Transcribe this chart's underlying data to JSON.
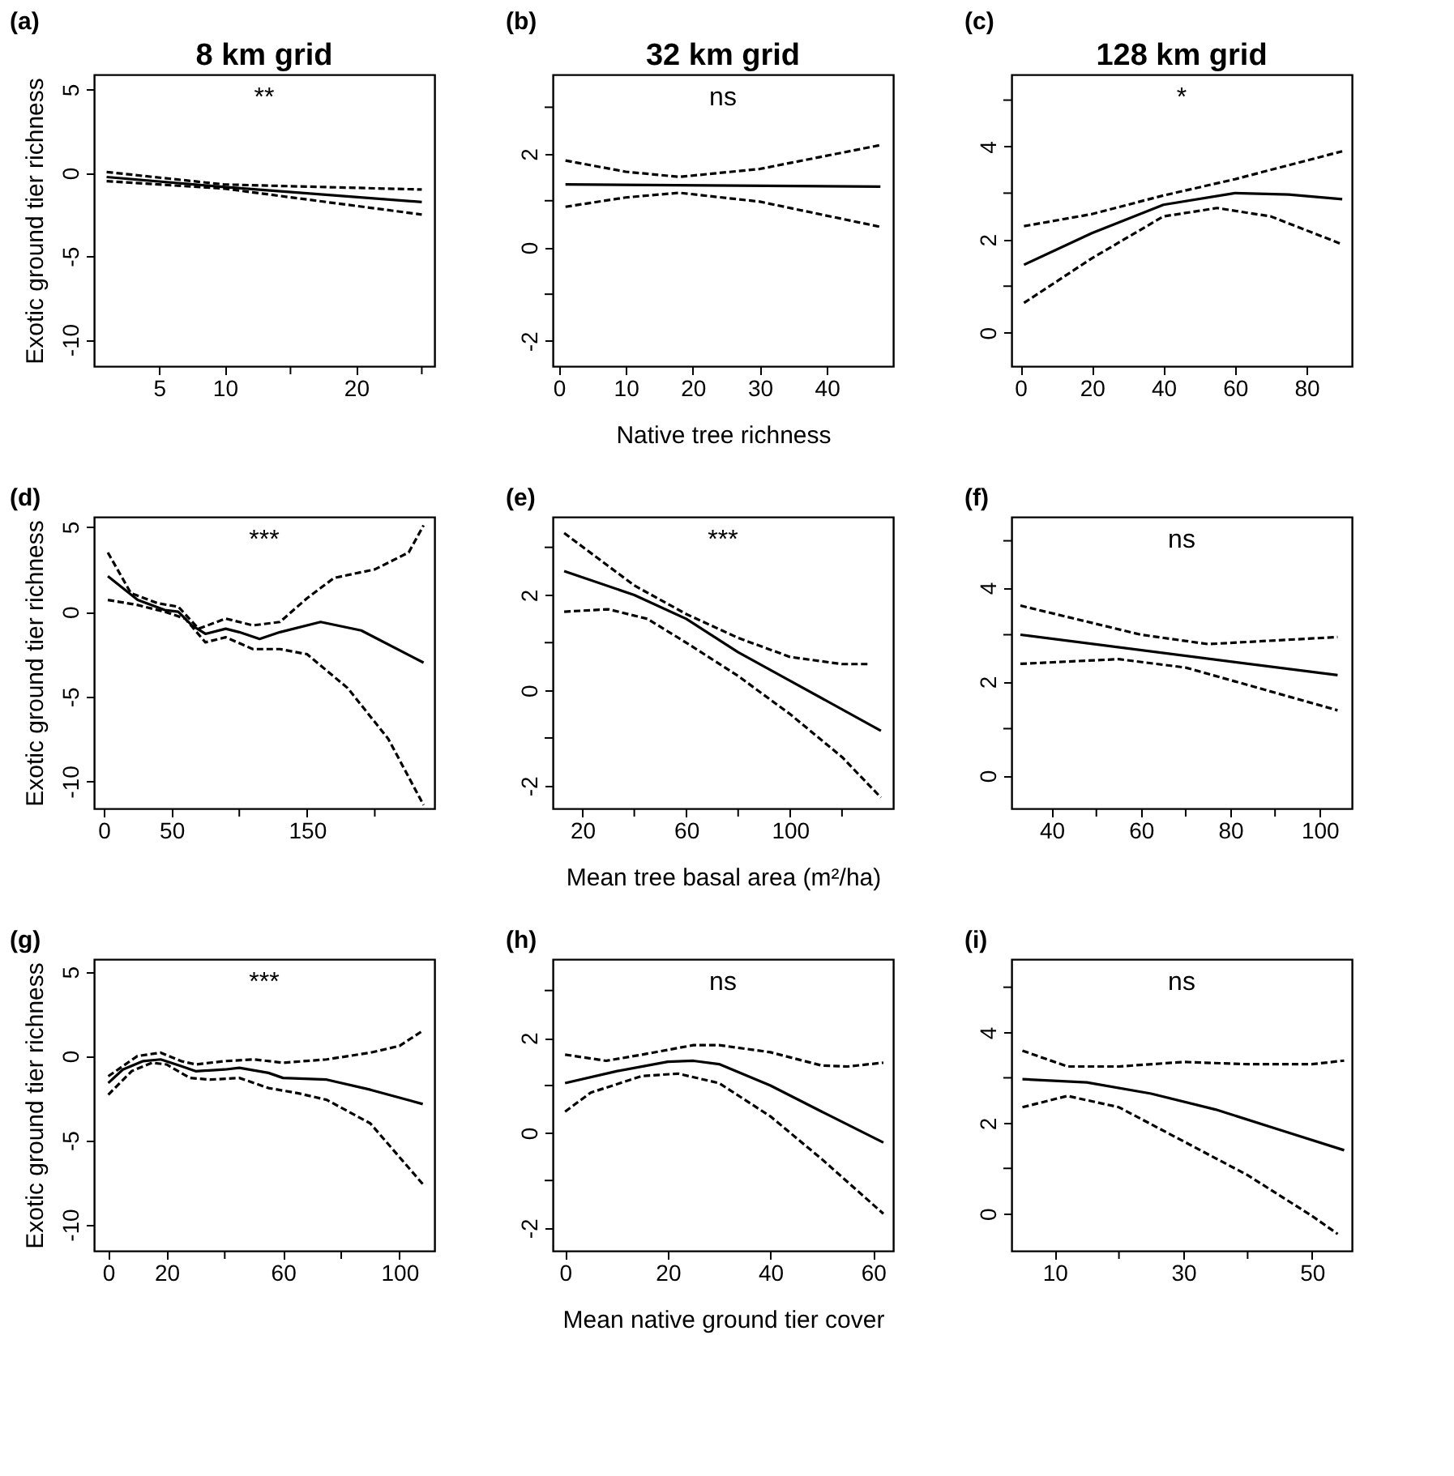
{
  "chart_data": [
    {
      "type": "line",
      "title": "(a)",
      "subtitle": "8 km grid",
      "annotations": [
        "**"
      ],
      "ylabel": "Exotic ground tier richness",
      "xlim": [
        0.04,
        25.96
      ],
      "xticks": [
        5,
        10,
        {
          "value": 15,
          "label": null
        },
        20,
        {
          "value": 25,
          "label": null
        }
      ],
      "ylim": [
        -11.6,
        5.9
      ],
      "yticks": [
        -10,
        -5,
        0,
        5
      ],
      "grid": false,
      "series": [
        {
          "color": "#000000",
          "line_style": "solid",
          "x": [
            1,
            10,
            25
          ],
          "values": [
            -0.25,
            -0.85,
            -1.75
          ]
        },
        {
          "color": "#000000",
          "line_style": "dashed",
          "x": [
            1,
            10,
            25
          ],
          "values": [
            0.05,
            -0.7,
            -1.0
          ]
        },
        {
          "color": "#000000",
          "line_style": "dashed",
          "x": [
            1,
            10,
            25
          ],
          "values": [
            -0.5,
            -0.95,
            -2.5
          ]
        }
      ]
    },
    {
      "type": "line",
      "title": "(b)",
      "subtitle": "32 km grid",
      "annotations": [
        "ns"
      ],
      "xlabel": "Native tree richness",
      "xlim": [
        -0.9,
        49.9
      ],
      "xticks": [
        0,
        10,
        20,
        30,
        40
      ],
      "ylim": [
        -2.54,
        3.7
      ],
      "yticks": [
        -2,
        {
          "value": -1,
          "label": null
        },
        0,
        {
          "value": 1,
          "label": null
        },
        2,
        {
          "value": 3,
          "label": null
        }
      ],
      "grid": false,
      "series": [
        {
          "color": "#000000",
          "line_style": "solid",
          "x": [
            1,
            48
          ],
          "values": [
            1.35,
            1.3
          ]
        },
        {
          "color": "#000000",
          "line_style": "dashed",
          "x": [
            1,
            10,
            18,
            30,
            48
          ],
          "values": [
            1.86,
            1.62,
            1.51,
            1.68,
            2.19
          ]
        },
        {
          "color": "#000000",
          "line_style": "dashed",
          "x": [
            1,
            10,
            18,
            30,
            48
          ],
          "values": [
            0.87,
            1.07,
            1.17,
            0.98,
            0.44
          ]
        }
      ]
    },
    {
      "type": "line",
      "title": "(c)",
      "subtitle": "128 km grid",
      "annotations": [
        "*"
      ],
      "xlim": [
        -2.5,
        92.7
      ],
      "xticks": [
        0,
        20,
        40,
        60,
        80
      ],
      "ylim": [
        -0.72,
        5.55
      ],
      "yticks": [
        0,
        {
          "value": 1,
          "label": null
        },
        2,
        {
          "value": 3,
          "label": null
        },
        4,
        {
          "value": 5,
          "label": null
        }
      ],
      "grid": false,
      "series": [
        {
          "color": "#000000",
          "line_style": "solid",
          "x": [
            1,
            20,
            40,
            60,
            75,
            90
          ],
          "values": [
            1.46,
            2.14,
            2.75,
            3.0,
            2.97,
            2.87
          ]
        },
        {
          "color": "#000000",
          "line_style": "dashed",
          "x": [
            1,
            20,
            40,
            60,
            90
          ],
          "values": [
            2.29,
            2.55,
            2.95,
            3.3,
            3.9
          ]
        },
        {
          "color": "#000000",
          "line_style": "dashed",
          "x": [
            1,
            20,
            40,
            55,
            70,
            90
          ],
          "values": [
            0.64,
            1.6,
            2.5,
            2.68,
            2.5,
            1.9
          ]
        }
      ]
    },
    {
      "type": "line",
      "title": "(d)",
      "annotations": [
        "***"
      ],
      "ylabel": "Exotic ground tier richness",
      "xlim": [
        -7.2,
        244
      ],
      "xticks": [
        0,
        50,
        {
          "value": 100,
          "label": null
        },
        150,
        {
          "value": 200,
          "label": null
        }
      ],
      "ylim": [
        -11.6,
        5.6
      ],
      "yticks": [
        -10,
        -5,
        0,
        5
      ],
      "grid": false,
      "series": [
        {
          "color": "#000000",
          "line_style": "solid",
          "x": [
            3,
            25,
            45,
            55,
            65,
            75,
            90,
            100,
            115,
            130,
            160,
            190,
            236
          ],
          "values": [
            2.1,
            0.7,
            0.1,
            0,
            -0.8,
            -1.3,
            -1.0,
            -1.2,
            -1.6,
            -1.2,
            -0.6,
            -1.1,
            -3.0
          ]
        },
        {
          "color": "#000000",
          "line_style": "dashed",
          "x": [
            3,
            20,
            40,
            55,
            70,
            90,
            110,
            130,
            150,
            170,
            200,
            225,
            236
          ],
          "values": [
            3.5,
            1.1,
            0.5,
            0.3,
            -1.0,
            -0.4,
            -0.8,
            -0.6,
            0.8,
            2.0,
            2.5,
            3.5,
            5.1
          ]
        },
        {
          "color": "#000000",
          "line_style": "dashed",
          "x": [
            3,
            25,
            45,
            60,
            75,
            90,
            110,
            130,
            150,
            180,
            210,
            236
          ],
          "values": [
            0.7,
            0.4,
            0,
            -0.4,
            -1.8,
            -1.5,
            -2.2,
            -2.2,
            -2.5,
            -4.5,
            -7.5,
            -11.4
          ]
        }
      ]
    },
    {
      "type": "line",
      "title": "(e)",
      "annotations": [
        "***"
      ],
      "xlabel": "Mean tree basal area (m²/ha)",
      "xlim": [
        8.6,
        139.7
      ],
      "xticks": [
        20,
        {
          "value": 40,
          "label": null
        },
        60,
        {
          "value": 80,
          "label": null
        },
        100,
        {
          "value": 120,
          "label": null
        }
      ],
      "ylim": [
        -2.48,
        3.64
      ],
      "yticks": [
        -2,
        {
          "value": -1,
          "label": null
        },
        0,
        {
          "value": 1,
          "label": null
        },
        2,
        {
          "value": 3,
          "label": null
        }
      ],
      "grid": false,
      "series": [
        {
          "color": "#000000",
          "line_style": "solid",
          "x": [
            13,
            40,
            60,
            80,
            100,
            135
          ],
          "values": [
            2.5,
            2.0,
            1.5,
            0.8,
            0.2,
            -0.85
          ]
        },
        {
          "color": "#000000",
          "line_style": "dashed",
          "x": [
            13,
            40,
            60,
            80,
            100,
            120,
            130
          ],
          "values": [
            3.3,
            2.2,
            1.6,
            1.1,
            0.7,
            0.55,
            0.55
          ]
        },
        {
          "color": "#000000",
          "line_style": "dashed",
          "x": [
            13,
            30,
            45,
            60,
            80,
            100,
            120,
            135
          ],
          "values": [
            1.65,
            1.7,
            1.5,
            1.0,
            0.3,
            -0.5,
            -1.4,
            -2.25
          ]
        }
      ]
    },
    {
      "type": "line",
      "title": "(f)",
      "annotations": [
        "ns"
      ],
      "xlim": [
        31.0,
        107.2
      ],
      "xticks": [
        40,
        {
          "value": 50,
          "label": null
        },
        60,
        {
          "value": 70,
          "label": null
        },
        80,
        {
          "value": 90,
          "label": null
        },
        100
      ],
      "ylim": [
        -0.7,
        5.51
      ],
      "yticks": [
        0,
        {
          "value": 1,
          "label": null
        },
        2,
        {
          "value": 3,
          "label": null
        },
        4,
        {
          "value": 5,
          "label": null
        }
      ],
      "grid": false,
      "series": [
        {
          "color": "#000000",
          "line_style": "solid",
          "x": [
            33,
            104
          ],
          "values": [
            3.0,
            2.14
          ]
        },
        {
          "color": "#000000",
          "line_style": "dashed",
          "x": [
            33,
            60,
            75,
            104
          ],
          "values": [
            3.62,
            3.0,
            2.8,
            2.95
          ]
        },
        {
          "color": "#000000",
          "line_style": "dashed",
          "x": [
            33,
            55,
            70,
            85,
            104
          ],
          "values": [
            2.38,
            2.48,
            2.3,
            1.9,
            1.39
          ]
        }
      ]
    },
    {
      "type": "line",
      "title": "(g)",
      "annotations": [
        "***"
      ],
      "ylabel": "Exotic ground tier richness",
      "xlim": [
        -4.9,
        112
      ],
      "xticks": [
        0,
        20,
        {
          "value": 40,
          "label": null
        },
        60,
        {
          "value": 80,
          "label": null
        },
        100
      ],
      "ylim": [
        -11.56,
        5.75
      ],
      "yticks": [
        -10,
        -5,
        0,
        5
      ],
      "grid": false,
      "series": [
        {
          "color": "#000000",
          "line_style": "solid",
          "x": [
            0,
            5,
            12,
            18,
            25,
            30,
            40,
            45,
            55,
            60,
            75,
            90,
            108
          ],
          "values": [
            -1.6,
            -0.8,
            -0.3,
            -0.2,
            -0.6,
            -0.9,
            -0.8,
            -0.7,
            -1.0,
            -1.3,
            -1.4,
            -2.0,
            -2.85
          ]
        },
        {
          "color": "#000000",
          "line_style": "dashed",
          "x": [
            0,
            10,
            18,
            25,
            30,
            40,
            50,
            60,
            75,
            90,
            100,
            108
          ],
          "values": [
            -1.2,
            0,
            0.2,
            -0.3,
            -0.5,
            -0.3,
            -0.2,
            -0.4,
            -0.2,
            0.2,
            0.6,
            1.5
          ]
        },
        {
          "color": "#000000",
          "line_style": "dashed",
          "x": [
            0,
            8,
            15,
            20,
            28,
            35,
            45,
            55,
            65,
            75,
            90,
            108
          ],
          "values": [
            -2.3,
            -0.9,
            -0.4,
            -0.5,
            -1.3,
            -1.4,
            -1.3,
            -1.9,
            -2.2,
            -2.6,
            -4.0,
            -7.6
          ]
        }
      ]
    },
    {
      "type": "line",
      "title": "(h)",
      "annotations": [
        "ns"
      ],
      "xlabel": "Mean native ground tier cover",
      "xlim": [
        -2.4,
        63.9
      ],
      "xticks": [
        0,
        20,
        40,
        60
      ],
      "ylim": [
        -2.48,
        3.66
      ],
      "yticks": [
        -2,
        {
          "value": -1,
          "label": null
        },
        0,
        {
          "value": 1,
          "label": null
        },
        2,
        {
          "value": 3,
          "label": null
        }
      ],
      "grid": false,
      "series": [
        {
          "color": "#000000",
          "line_style": "solid",
          "x": [
            0,
            10,
            20,
            25,
            30,
            40,
            50,
            62
          ],
          "values": [
            1.05,
            1.3,
            1.5,
            1.52,
            1.45,
            1.0,
            0.45,
            -0.2
          ]
        },
        {
          "color": "#000000",
          "line_style": "dashed",
          "x": [
            0,
            8,
            15,
            25,
            30,
            40,
            50,
            55,
            62
          ],
          "values": [
            1.65,
            1.52,
            1.65,
            1.85,
            1.85,
            1.7,
            1.42,
            1.4,
            1.48
          ]
        },
        {
          "color": "#000000",
          "line_style": "dashed",
          "x": [
            0,
            5,
            15,
            22,
            30,
            40,
            50,
            62
          ],
          "values": [
            0.45,
            0.85,
            1.2,
            1.25,
            1.05,
            0.35,
            -0.55,
            -1.7
          ]
        }
      ]
    },
    {
      "type": "line",
      "title": "(i)",
      "annotations": [
        "ns"
      ],
      "xlim": [
        3.3,
        56.2
      ],
      "xticks": [
        10,
        {
          "value": 20,
          "label": null
        },
        30,
        {
          "value": 40,
          "label": null
        },
        50
      ],
      "ylim": [
        -0.82,
        5.62
      ],
      "yticks": [
        0,
        {
          "value": 1,
          "label": null
        },
        2,
        {
          "value": 3,
          "label": null
        },
        4,
        {
          "value": 5,
          "label": null
        }
      ],
      "grid": false,
      "series": [
        {
          "color": "#000000",
          "line_style": "solid",
          "x": [
            5,
            15,
            25,
            35,
            45,
            55
          ],
          "values": [
            2.97,
            2.9,
            2.65,
            2.3,
            1.85,
            1.4
          ]
        },
        {
          "color": "#000000",
          "line_style": "dashed",
          "x": [
            5,
            12,
            20,
            30,
            40,
            50,
            55
          ],
          "values": [
            3.6,
            3.25,
            3.25,
            3.35,
            3.3,
            3.3,
            3.38
          ]
        },
        {
          "color": "#000000",
          "line_style": "dashed",
          "x": [
            5,
            12,
            20,
            30,
            40,
            50,
            54
          ],
          "values": [
            2.35,
            2.6,
            2.35,
            1.6,
            0.85,
            -0.05,
            -0.45
          ]
        }
      ]
    }
  ]
}
